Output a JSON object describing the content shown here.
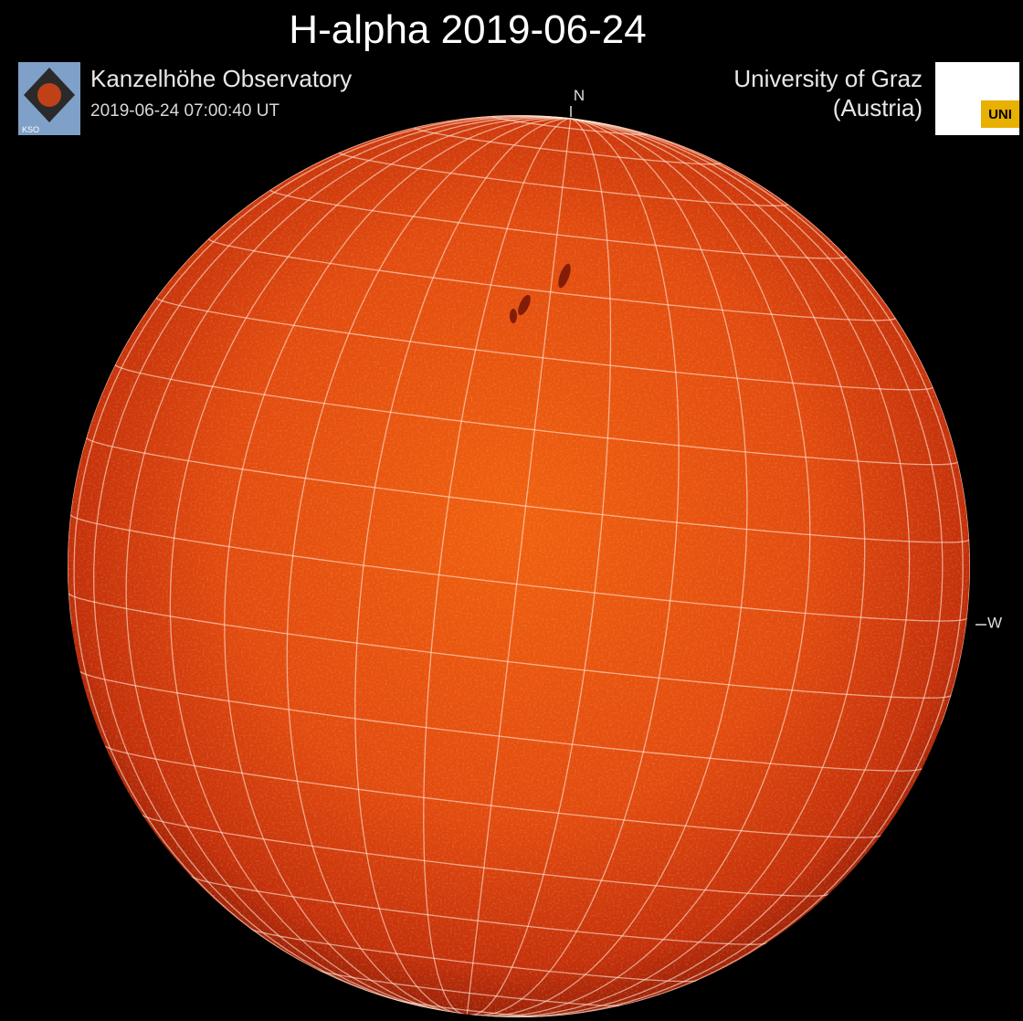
{
  "header": {
    "title": "H-alpha 2019-06-24"
  },
  "left_caption": {
    "observatory": "Kanzelhöhe Observatory",
    "timestamp": "2019-06-24 07:00:40 UT",
    "logo_text": "KSO"
  },
  "right_caption": {
    "line1": "University of Graz",
    "line2": "(Austria)",
    "logo_text": "UNI"
  },
  "directions": {
    "north": "N",
    "west": "W"
  }
}
